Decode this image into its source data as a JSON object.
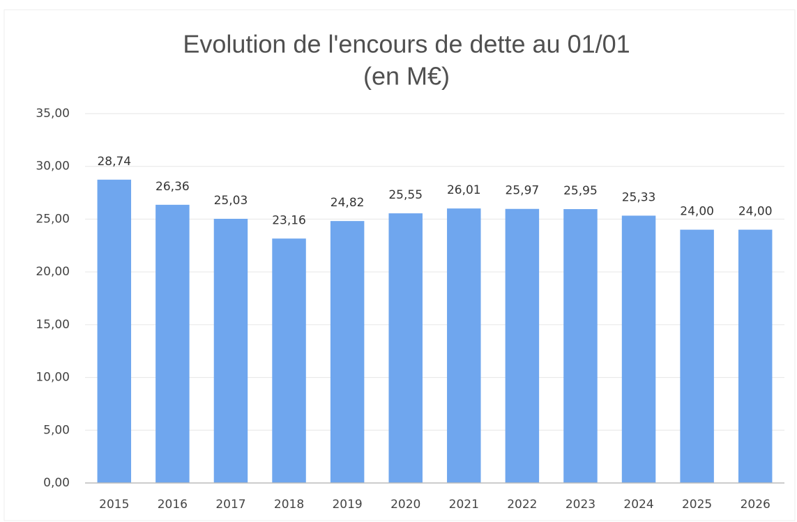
{
  "chart_data": {
    "type": "bar",
    "title": [
      "Evolution de l'encours de dette au 01/01",
      "(en M€)"
    ],
    "categories": [
      "2015",
      "2016",
      "2017",
      "2018",
      "2019",
      "2020",
      "2021",
      "2022",
      "2023",
      "2024",
      "2025",
      "2026"
    ],
    "values": [
      28.74,
      26.36,
      25.03,
      23.16,
      24.82,
      25.55,
      26.01,
      25.97,
      25.95,
      25.33,
      24.0,
      24.0
    ],
    "value_labels": [
      "28,74",
      "26,36",
      "25,03",
      "23,16",
      "24,82",
      "25,55",
      "26,01",
      "25,97",
      "25,95",
      "25,33",
      "24,00",
      "24,00"
    ],
    "color": "#6fa6ee",
    "ylim": [
      0,
      35
    ],
    "yticks": [
      {
        "value": 0,
        "label": "0,00"
      },
      {
        "value": 5,
        "label": "5,00"
      },
      {
        "value": 10,
        "label": "10,00"
      },
      {
        "value": 15,
        "label": "15,00"
      },
      {
        "value": 20,
        "label": "20,00"
      },
      {
        "value": 25,
        "label": "25,00"
      },
      {
        "value": 30,
        "label": "30,00"
      },
      {
        "value": 35,
        "label": "35,00"
      }
    ],
    "grid": true
  }
}
